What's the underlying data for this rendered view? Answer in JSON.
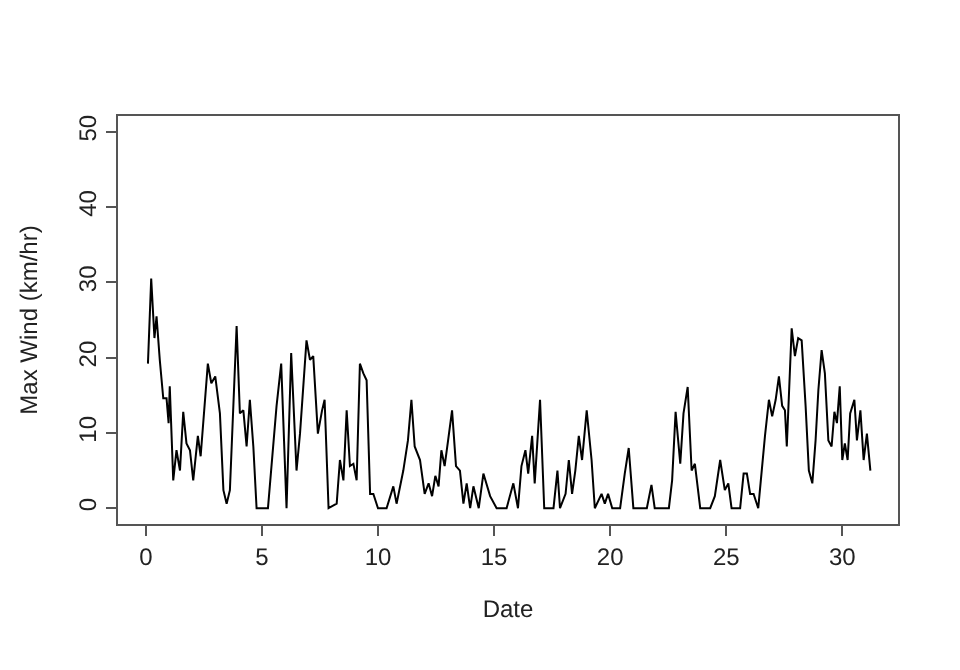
{
  "chart_data": {
    "type": "line",
    "xlabel": "Date",
    "ylabel": "Max Wind (km/hr)",
    "x": [
      0.09,
      0.23,
      0.37,
      0.46,
      0.6,
      0.75,
      0.89,
      0.98,
      1.03,
      1.18,
      1.32,
      1.47,
      1.61,
      1.75,
      1.9,
      2.04,
      2.24,
      2.36,
      2.67,
      2.82,
      2.99,
      3.19,
      3.34,
      3.48,
      3.62,
      3.91,
      4.05,
      4.2,
      4.34,
      4.48,
      4.63,
      4.77,
      5.26,
      5.63,
      5.83,
      6.06,
      6.26,
      6.49,
      6.64,
      6.92,
      7.07,
      7.21,
      7.41,
      7.59,
      7.7,
      7.87,
      8.22,
      8.36,
      8.51,
      8.65,
      8.79,
      8.94,
      9.08,
      9.22,
      9.37,
      9.51,
      9.66,
      9.8,
      10.0,
      10.37,
      10.66,
      10.8,
      11.09,
      11.29,
      11.44,
      11.58,
      11.81,
      12.01,
      12.18,
      12.33,
      12.47,
      12.61,
      12.73,
      12.87,
      13.02,
      13.19,
      13.36,
      13.53,
      13.68,
      13.82,
      13.97,
      14.11,
      14.34,
      14.54,
      14.83,
      15.11,
      15.54,
      15.83,
      16.03,
      16.18,
      16.35,
      16.47,
      16.64,
      16.75,
      16.98,
      17.16,
      17.56,
      17.73,
      17.84,
      18.08,
      18.22,
      18.36,
      18.5,
      18.65,
      18.79,
      18.99,
      19.2,
      19.34,
      19.63,
      19.77,
      19.91,
      20.09,
      20.43,
      20.63,
      20.8,
      21.0,
      21.58,
      21.78,
      21.92,
      22.53,
      22.67,
      22.82,
      23.02,
      23.16,
      23.34,
      23.51,
      23.65,
      23.88,
      24.31,
      24.51,
      24.74,
      24.94,
      25.09,
      25.23,
      25.6,
      25.75,
      25.89,
      26.03,
      26.18,
      26.38,
      26.67,
      26.84,
      26.98,
      27.13,
      27.27,
      27.41,
      27.53,
      27.61,
      27.82,
      27.96,
      28.1,
      28.25,
      28.42,
      28.56,
      28.71,
      28.85,
      28.97,
      29.11,
      29.25,
      29.4,
      29.54,
      29.66,
      29.77,
      29.89,
      30.0,
      30.11,
      30.23,
      30.34,
      30.52,
      30.63,
      30.78,
      30.92,
      31.06,
      31.21
    ],
    "series": [
      {
        "color": "#000000",
        "values": [
          19.2,
          30.5,
          22.6,
          25.5,
          19.7,
          14.6,
          14.6,
          11.3,
          16.2,
          3.7,
          7.7,
          5.0,
          12.8,
          8.6,
          7.7,
          3.7,
          9.6,
          6.9,
          19.2,
          16.6,
          17.5,
          12.6,
          2.4,
          0.6,
          2.4,
          24.2,
          12.6,
          13.0,
          8.2,
          14.4,
          8.2,
          0,
          0,
          13.6,
          19.2,
          0,
          20.6,
          5.0,
          9.9,
          22.3,
          19.7,
          20.2,
          9.9,
          13.0,
          14.4,
          0,
          0.6,
          6.4,
          3.7,
          13.0,
          5.6,
          5.9,
          3.7,
          19.2,
          17.9,
          17.0,
          1.9,
          1.9,
          0,
          0,
          2.9,
          0.6,
          5.0,
          9.0,
          14.4,
          8.2,
          6.4,
          1.9,
          3.3,
          1.6,
          4.3,
          2.9,
          7.7,
          5.6,
          9.0,
          13.0,
          5.6,
          5.0,
          0.6,
          3.3,
          0,
          2.9,
          0,
          4.6,
          1.6,
          0,
          0,
          3.3,
          0,
          5.6,
          7.7,
          4.6,
          9.6,
          3.3,
          14.4,
          0,
          0,
          5.0,
          0,
          1.9,
          6.4,
          1.9,
          5.0,
          9.6,
          6.4,
          13.0,
          6.4,
          0,
          1.9,
          0.6,
          1.9,
          0,
          0,
          4.6,
          8.0,
          0,
          0,
          3.1,
          0,
          0,
          3.7,
          12.8,
          5.9,
          12.6,
          16.1,
          5.0,
          5.9,
          0,
          0,
          1.6,
          6.4,
          2.4,
          3.3,
          0,
          0,
          4.6,
          4.6,
          1.9,
          1.9,
          0,
          9.6,
          14.4,
          12.2,
          14.4,
          17.5,
          13.6,
          13.0,
          8.2,
          23.9,
          20.2,
          22.6,
          22.3,
          13.6,
          5.0,
          3.3,
          9.0,
          15.7,
          21.0,
          17.9,
          9.0,
          8.2,
          12.8,
          11.3,
          16.2,
          6.4,
          8.6,
          6.4,
          12.6,
          14.4,
          9.0,
          13.0,
          6.4,
          9.9,
          5.0
        ]
      }
    ],
    "xlim": [
      -1.2,
      32.4
    ],
    "ylim": [
      -2.1,
      52.1
    ],
    "xticks": [
      0,
      5,
      10,
      15,
      20,
      25,
      30
    ],
    "yticks": [
      0,
      10,
      20,
      30,
      40,
      50
    ],
    "marker": "none",
    "line_style": "solid"
  }
}
